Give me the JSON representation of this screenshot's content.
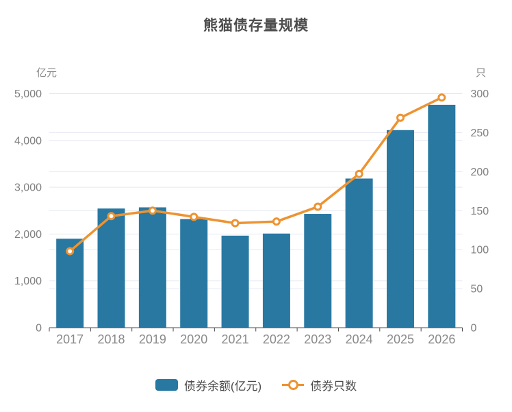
{
  "chart_data": {
    "type": "bar+line",
    "title": "熊猫债存量规模",
    "categories": [
      "2017",
      "2018",
      "2019",
      "2020",
      "2021",
      "2022",
      "2023",
      "2024",
      "2025",
      "2026"
    ],
    "series": [
      {
        "name": "债券余额(亿元)",
        "type": "bar",
        "axis": "left",
        "color": "#2878a2",
        "values": [
          1900,
          2545,
          2570,
          2320,
          1965,
          2010,
          2430,
          3185,
          4220,
          4760
        ]
      },
      {
        "name": "债券只数",
        "type": "line",
        "axis": "right",
        "color": "#ed9331",
        "values": [
          98,
          143,
          150,
          142,
          134,
          136,
          155,
          197,
          269,
          295
        ]
      }
    ],
    "y_left": {
      "name": "亿元",
      "min": 0,
      "max": 5000,
      "step": 1000,
      "tick_labels": [
        "0",
        "1,000",
        "2,000",
        "3,000",
        "4,000",
        "5,000"
      ]
    },
    "y_right": {
      "name": "只",
      "min": 0,
      "max": 300,
      "step": 50,
      "tick_labels": [
        "0",
        "50",
        "100",
        "150",
        "200",
        "250",
        "300"
      ]
    },
    "legend_position": "bottom",
    "grid": true,
    "colors": {
      "bar": "#2878a2",
      "line": "#ed9331",
      "gridline": "#e4e9f2",
      "axis_line": "#4d4d4d",
      "tick_label_y": "#7f7f7f",
      "tick_label_x": "#8a8a8a",
      "title": "#4c4c4c",
      "background": "#ffffff"
    }
  }
}
